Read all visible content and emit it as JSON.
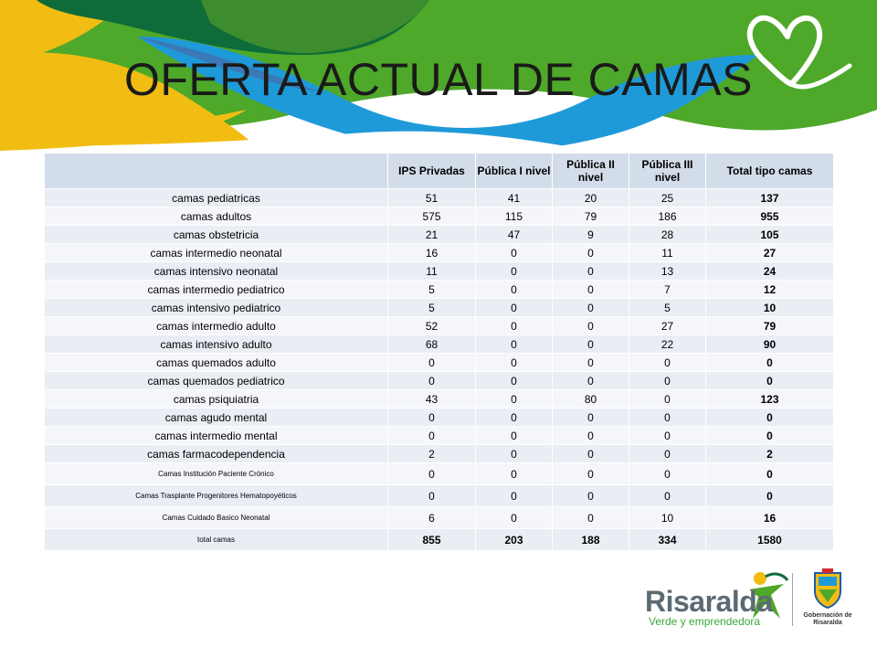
{
  "slide": {
    "title": "OFERTA ACTUAL DE CAMAS"
  },
  "table": {
    "headers": [
      "",
      "IPS Privadas",
      "Pública I nivel",
      "Pública II nivel",
      "Pública III nivel",
      "Total tipo camas"
    ],
    "rows": [
      {
        "label": "camas pediatricas",
        "values": [
          "51",
          "41",
          "20",
          "25",
          "137"
        ]
      },
      {
        "label": "camas adultos",
        "values": [
          "575",
          "115",
          "79",
          "186",
          "955"
        ]
      },
      {
        "label": "camas obstetricia",
        "values": [
          "21",
          "47",
          "9",
          "28",
          "105"
        ]
      },
      {
        "label": "camas intermedio neonatal",
        "values": [
          "16",
          "0",
          "0",
          "11",
          "27"
        ]
      },
      {
        "label": "camas intensivo neonatal",
        "values": [
          "11",
          "0",
          "0",
          "13",
          "24"
        ]
      },
      {
        "label": "camas intermedio pediatrico",
        "values": [
          "5",
          "0",
          "0",
          "7",
          "12"
        ]
      },
      {
        "label": "camas intensivo pediatrico",
        "values": [
          "5",
          "0",
          "0",
          "5",
          "10"
        ]
      },
      {
        "label": "camas intermedio adulto",
        "values": [
          "52",
          "0",
          "0",
          "27",
          "79"
        ]
      },
      {
        "label": "camas intensivo adulto",
        "values": [
          "68",
          "0",
          "0",
          "22",
          "90"
        ]
      },
      {
        "label": "camas quemados adulto",
        "values": [
          "0",
          "0",
          "0",
          "0",
          "0"
        ]
      },
      {
        "label": "camas quemados pediatrico",
        "values": [
          "0",
          "0",
          "0",
          "0",
          "0"
        ]
      },
      {
        "label": "camas psiquiatria",
        "values": [
          "43",
          "0",
          "80",
          "0",
          "123"
        ]
      },
      {
        "label": "camas agudo mental",
        "values": [
          "0",
          "0",
          "0",
          "0",
          "0"
        ]
      },
      {
        "label": "camas intermedio mental",
        "values": [
          "0",
          "0",
          "0",
          "0",
          "0"
        ]
      },
      {
        "label": "camas farmacodependencia",
        "values": [
          "2",
          "0",
          "0",
          "0",
          "2"
        ]
      },
      {
        "label": "Camas Institución Paciente Crónico",
        "values": [
          "0",
          "0",
          "0",
          "0",
          "0"
        ]
      },
      {
        "label": "Camas Trasplante Progenitores Hematopoyéticos",
        "values": [
          "0",
          "0",
          "0",
          "0",
          "0"
        ]
      },
      {
        "label": "Camas Cuidado Basico Neonatal",
        "values": [
          "6",
          "0",
          "0",
          "10",
          "16"
        ]
      },
      {
        "label": "total camas",
        "values": [
          "855",
          "203",
          "188",
          "334",
          "1580"
        ]
      }
    ]
  },
  "logo": {
    "name": "Risaralda",
    "tagline": "Verde y emprendedora",
    "gov_line1": "Gobernación de",
    "gov_line2": "Risaralda"
  },
  "colors": {
    "dark_green": "#0e6b3a",
    "green": "#4ea82a",
    "light_green": "#7ab929",
    "blue": "#1f9ad8",
    "yellow": "#f1bd12",
    "header_fill": "#d3dce9",
    "row_fill_a": "#e9edf4",
    "row_fill_b": "#f4f6fa"
  }
}
